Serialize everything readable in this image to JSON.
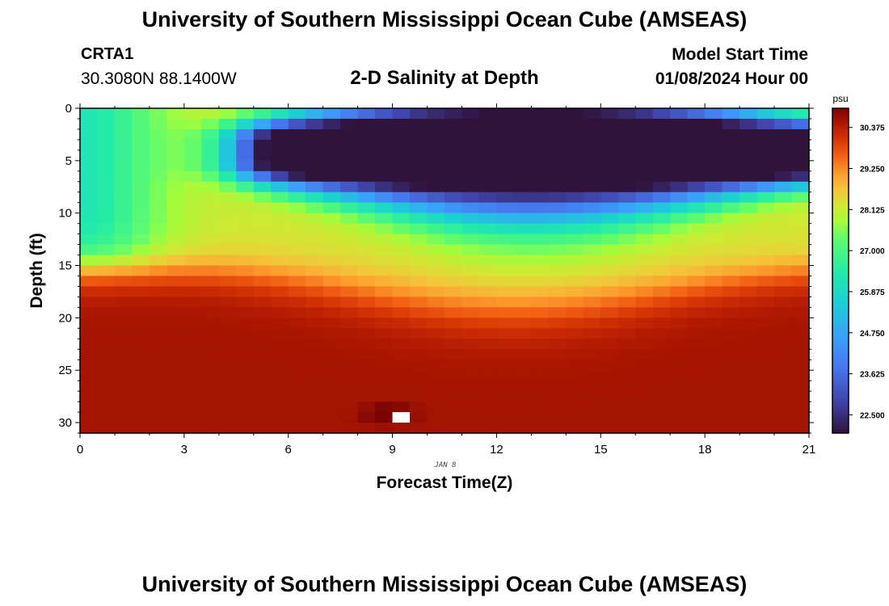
{
  "header": {
    "main_title": "University of Southern Mississippi Ocean Cube (AMSEAS)",
    "station_name": "CRTA1",
    "station_coords": "30.3080N  88.1400W",
    "plot_title": "2-D Salinity at Depth",
    "model_start_label": "Model Start Time",
    "model_start_value": "01/08/2024 Hour 00"
  },
  "footer": {
    "title": "University of Southern Mississippi Ocean Cube (AMSEAS)"
  },
  "chart_data": {
    "type": "heatmap",
    "title": "2-D Salinity at Depth",
    "xlabel": "Forecast Time(Z)",
    "ylabel": "Depth (ft)",
    "xlim": [
      0,
      21
    ],
    "ylim": [
      0,
      31
    ],
    "y_inverted": true,
    "x_ticks": [
      0,
      3,
      6,
      9,
      12,
      15,
      18,
      21
    ],
    "y_ticks": [
      0,
      5,
      10,
      15,
      20,
      25,
      30
    ],
    "date_label": "JAN 8",
    "colorbar": {
      "unit": "psu",
      "range": [
        22.0,
        30.9
      ],
      "ticks": [
        "30.375",
        "29.250",
        "28.125",
        "27.000",
        "25.875",
        "24.750",
        "23.625",
        "22.500"
      ]
    },
    "grid": {
      "time_step_hours": 0.5,
      "depth_step_ft": 1,
      "description": "Fresher water (25.5-27.5 psu) near surface at 0-4Z; strong low-salinity layer (~22.5 psu) at 1-7 ft from 6Z-21Z; halocline deepening to ~15-18 ft mid-period; high salinity (~30.3-30.6 psu) below 20 ft; missing value near 9Z at 29 ft"
    },
    "missing_cells": [
      {
        "time": 9.0,
        "depth_ft": 29
      }
    ]
  }
}
